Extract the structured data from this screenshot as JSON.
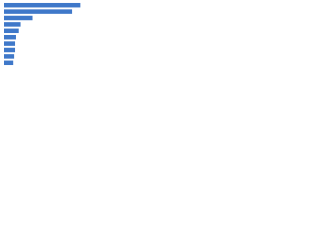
{
  "chart_data": {
    "type": "bar",
    "orientation": "horizontal",
    "categories": [
      null,
      null,
      null,
      null,
      null,
      null,
      null,
      null,
      null,
      null
    ],
    "values": [
      83,
      74,
      31,
      18,
      16,
      13,
      12,
      12,
      11,
      10
    ],
    "color": "#3f78c9",
    "xlim": [
      0,
      100
    ]
  }
}
